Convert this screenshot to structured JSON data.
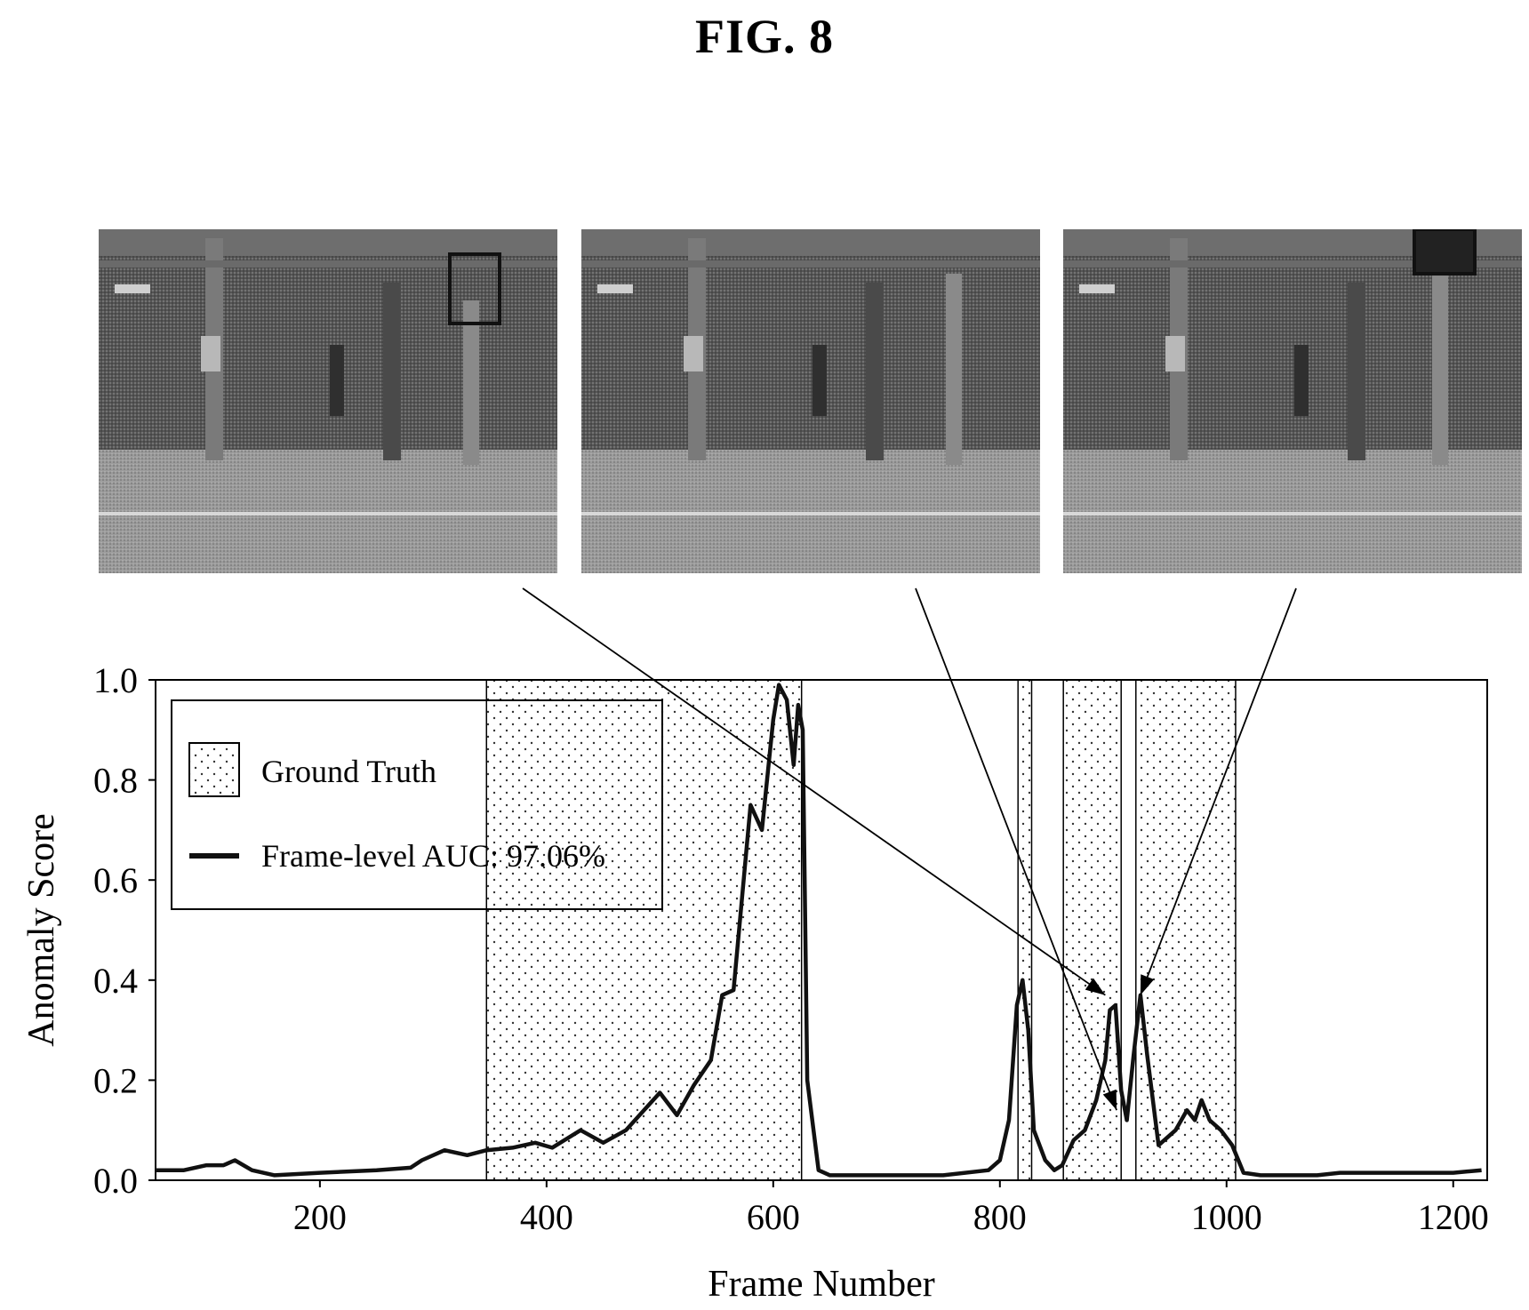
{
  "figure": {
    "title": "FIG. 8"
  },
  "frames": [
    {
      "name": "frame-1",
      "highlight": "right-pillar-top"
    },
    {
      "name": "frame-2",
      "highlight": "none"
    },
    {
      "name": "frame-3",
      "highlight": "top-right-corner"
    }
  ],
  "colors": {
    "line": "#111111",
    "grid_box": "#000000",
    "shade_dot": "#333333",
    "frame_dark": "#3a3a3a",
    "frame_floor": "#9a9a9a"
  },
  "chart_data": {
    "type": "line",
    "xlabel": "Frame Number",
    "ylabel": "Anomaly Score",
    "xlim": [
      55,
      1230
    ],
    "ylim": [
      0,
      1.0
    ],
    "xticks": [
      200,
      400,
      600,
      800,
      1000,
      1200
    ],
    "xtick_labels": [
      "200",
      "400",
      "600",
      "800",
      "1000",
      "1200"
    ],
    "yticks": [
      0.0,
      0.2,
      0.4,
      0.6,
      0.8,
      1.0
    ],
    "ytick_labels": [
      "0.0",
      "0.2",
      "0.4",
      "0.6",
      "0.8",
      "1.0"
    ],
    "legend": {
      "placement": "top-left",
      "entries": [
        {
          "kind": "shade",
          "label": "Ground Truth"
        },
        {
          "kind": "line",
          "label": "Frame-level AUC: 97.06%"
        }
      ]
    },
    "ground_truth_intervals": [
      [
        347,
        625
      ],
      [
        816,
        828
      ],
      [
        856,
        907
      ],
      [
        920,
        1008
      ]
    ],
    "series": [
      {
        "x": [
          55,
          80,
          100,
          115,
          125,
          140,
          160,
          200,
          250,
          280,
          290,
          310,
          330,
          347,
          370,
          390,
          405,
          430,
          450,
          470,
          490,
          500,
          515,
          530,
          545,
          555,
          565,
          580,
          590,
          600,
          605,
          612,
          618,
          622,
          626,
          630,
          640,
          650,
          700,
          750,
          790,
          800,
          808,
          815,
          820,
          825,
          830,
          840,
          848,
          855,
          865,
          875,
          885,
          893,
          897,
          902,
          907,
          912,
          918,
          924,
          930,
          940,
          955,
          965,
          972,
          978,
          985,
          995,
          1005,
          1015,
          1030,
          1080,
          1100,
          1150,
          1200,
          1225
        ],
        "y": [
          0.02,
          0.02,
          0.03,
          0.03,
          0.04,
          0.02,
          0.01,
          0.015,
          0.02,
          0.025,
          0.04,
          0.06,
          0.05,
          0.06,
          0.065,
          0.075,
          0.065,
          0.1,
          0.075,
          0.1,
          0.15,
          0.175,
          0.13,
          0.19,
          0.24,
          0.37,
          0.38,
          0.75,
          0.7,
          0.92,
          0.99,
          0.96,
          0.83,
          0.95,
          0.9,
          0.2,
          0.02,
          0.01,
          0.01,
          0.01,
          0.02,
          0.04,
          0.12,
          0.35,
          0.4,
          0.3,
          0.1,
          0.04,
          0.02,
          0.03,
          0.08,
          0.1,
          0.16,
          0.24,
          0.34,
          0.35,
          0.18,
          0.12,
          0.25,
          0.37,
          0.25,
          0.07,
          0.1,
          0.14,
          0.12,
          0.16,
          0.12,
          0.1,
          0.07,
          0.015,
          0.01,
          0.01,
          0.015,
          0.015,
          0.015,
          0.02
        ]
      }
    ],
    "annotation_arrows": [
      {
        "from_frame": 1,
        "to_x": 893,
        "to_y": 0.37
      },
      {
        "from_frame": 2,
        "to_x": 903,
        "to_y": 0.14
      },
      {
        "from_frame": 3,
        "to_x": 924,
        "to_y": 0.37
      }
    ]
  }
}
